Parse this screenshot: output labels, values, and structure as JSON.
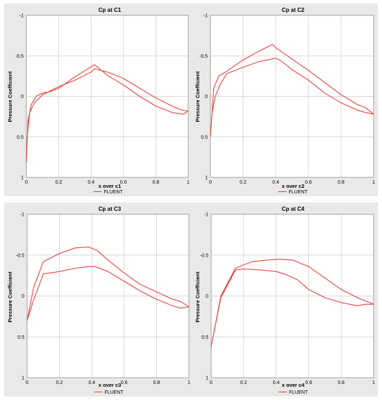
{
  "chart_data": [
    {
      "type": "line",
      "title": "Cp at C1",
      "xlabel": "x over c1",
      "ylabel": "Pressure Coefficient",
      "xlim": [
        0,
        1
      ],
      "ylim": [
        1,
        -1
      ],
      "y_inverted": true,
      "grid": true,
      "legend_position": "bottom-center",
      "x_ticks": [
        "0",
        "0.2",
        "0.4",
        "0.6",
        "0.8",
        "1"
      ],
      "y_ticks": [
        "-1",
        "-0.5",
        "0",
        "0.5",
        "1"
      ],
      "series": [
        {
          "name": "FLUENT",
          "color": "#e8413e",
          "x": [
            0.0,
            0.005,
            0.02,
            0.05,
            0.1,
            0.15,
            0.2,
            0.3,
            0.4,
            0.42,
            0.5,
            0.6,
            0.7,
            0.8,
            0.9,
            0.96,
            1.0,
            0.97,
            0.9,
            0.8,
            0.7,
            0.6,
            0.5,
            0.44,
            0.42,
            0.3,
            0.2,
            0.15,
            0.1,
            0.06,
            0.03,
            0.01,
            0.0
          ],
          "y": [
            0.82,
            0.5,
            0.2,
            0.08,
            -0.02,
            -0.07,
            -0.12,
            -0.2,
            -0.3,
            -0.34,
            -0.3,
            -0.22,
            -0.1,
            0.02,
            0.12,
            0.17,
            0.18,
            0.22,
            0.2,
            0.12,
            0.0,
            -0.14,
            -0.26,
            -0.36,
            -0.39,
            -0.24,
            -0.1,
            -0.06,
            -0.04,
            0.0,
            0.1,
            0.3,
            0.82
          ]
        }
      ]
    },
    {
      "type": "line",
      "title": "Cp at C2",
      "xlabel": "x over c2",
      "ylabel": "Pressure Coefficient",
      "xlim": [
        0,
        1
      ],
      "ylim": [
        1,
        -1
      ],
      "y_inverted": true,
      "grid": true,
      "legend_position": "bottom-center",
      "x_ticks": [
        "0",
        "0.2",
        "0.4",
        "0.6",
        "0.8",
        "1"
      ],
      "y_ticks": [
        "-1",
        "-0.5",
        "0",
        "0.5",
        "1"
      ],
      "series": [
        {
          "name": "FLUENT",
          "color": "#e8413e",
          "x": [
            0.0,
            0.01,
            0.03,
            0.06,
            0.1,
            0.2,
            0.3,
            0.4,
            0.43,
            0.5,
            0.6,
            0.7,
            0.8,
            0.9,
            0.95,
            1.0,
            0.95,
            0.9,
            0.8,
            0.7,
            0.6,
            0.5,
            0.4,
            0.38,
            0.3,
            0.2,
            0.1,
            0.05,
            0.02,
            0.0
          ],
          "y": [
            0.5,
            0.2,
            0.0,
            -0.15,
            -0.28,
            -0.36,
            -0.43,
            -0.47,
            -0.44,
            -0.33,
            -0.2,
            -0.04,
            0.08,
            0.17,
            0.2,
            0.22,
            0.14,
            0.1,
            -0.02,
            -0.17,
            -0.32,
            -0.46,
            -0.6,
            -0.64,
            -0.56,
            -0.45,
            -0.31,
            -0.25,
            -0.1,
            0.5
          ]
        }
      ]
    },
    {
      "type": "line",
      "title": "Cp at C3",
      "xlabel": "x over c3",
      "ylabel": "Pressure Coefficient",
      "xlim": [
        0,
        1
      ],
      "ylim": [
        1,
        -1
      ],
      "y_inverted": true,
      "grid": true,
      "legend_position": "bottom-center",
      "x_ticks": [
        "0",
        "0.2",
        "0.4",
        "0.6",
        "0.8",
        "1"
      ],
      "y_ticks": [
        "-1",
        "-0.5",
        "0",
        "0.5",
        "1"
      ],
      "series": [
        {
          "name": "FLUENT",
          "color": "#e8413e",
          "x": [
            0.0,
            0.04,
            0.1,
            0.2,
            0.3,
            0.38,
            0.42,
            0.5,
            0.6,
            0.7,
            0.8,
            0.9,
            0.95,
            1.0,
            0.95,
            0.9,
            0.8,
            0.7,
            0.6,
            0.5,
            0.43,
            0.38,
            0.3,
            0.2,
            0.14,
            0.1,
            0.04,
            0.0
          ],
          "y": [
            0.3,
            0.05,
            -0.27,
            -0.3,
            -0.34,
            -0.36,
            -0.36,
            -0.3,
            -0.18,
            -0.06,
            0.04,
            0.12,
            0.15,
            0.13,
            0.07,
            0.04,
            -0.05,
            -0.14,
            -0.28,
            -0.44,
            -0.56,
            -0.6,
            -0.59,
            -0.52,
            -0.46,
            -0.42,
            -0.1,
            0.3
          ]
        }
      ]
    },
    {
      "type": "line",
      "title": "Cp at C4",
      "xlabel": "x over c4",
      "ylabel": "Pressure Coefficient",
      "xlim": [
        0,
        1
      ],
      "ylim": [
        1,
        -1
      ],
      "y_inverted": true,
      "grid": true,
      "legend_position": "bottom-center",
      "x_ticks": [
        "0",
        "0.2",
        "0.4",
        "0.6",
        "0.8",
        "1"
      ],
      "y_ticks": [
        "-1",
        "-0.5",
        "0",
        "0.5",
        "1"
      ],
      "series": [
        {
          "name": "FLUENT",
          "color": "#e8413e",
          "x": [
            0.0,
            0.06,
            0.15,
            0.25,
            0.35,
            0.42,
            0.5,
            0.6,
            0.7,
            0.8,
            0.9,
            0.95,
            1.0,
            0.95,
            0.9,
            0.8,
            0.7,
            0.6,
            0.53,
            0.45,
            0.4,
            0.3,
            0.2,
            0.15,
            0.06,
            0.0
          ],
          "y": [
            0.62,
            0.0,
            -0.34,
            -0.42,
            -0.44,
            -0.45,
            -0.44,
            -0.36,
            -0.22,
            -0.08,
            0.02,
            0.06,
            0.1,
            0.1,
            0.12,
            0.08,
            0.02,
            -0.08,
            -0.2,
            -0.27,
            -0.3,
            -0.32,
            -0.33,
            -0.32,
            0.02,
            0.62
          ]
        }
      ]
    }
  ]
}
